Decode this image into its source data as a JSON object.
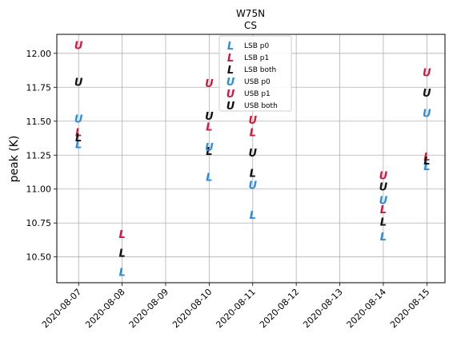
{
  "chart_data": {
    "type": "scatter",
    "title": "W75N",
    "subtitle": "CS",
    "xlabel": "",
    "ylabel": "peak (K)",
    "x_type": "date",
    "xlim": [
      "2020-08-06T12:00",
      "2020-08-15T10:00"
    ],
    "ylim": [
      10.31,
      12.14
    ],
    "x_ticks": [
      "2020-08-07",
      "2020-08-08",
      "2020-08-09",
      "2020-08-10",
      "2020-08-11",
      "2020-08-12",
      "2020-08-13",
      "2020-08-14",
      "2020-08-15"
    ],
    "y_ticks": [
      "10.50",
      "10.75",
      "11.00",
      "11.25",
      "11.50",
      "11.75",
      "12.00"
    ],
    "grid": true,
    "legend_position": "top-center",
    "series": [
      {
        "name": "LSB p0",
        "marker": "L",
        "color": "#2a8ee0",
        "points": [
          [
            "2020-08-07",
            11.33
          ],
          [
            "2020-08-08",
            10.39
          ],
          [
            "2020-08-10",
            11.09
          ],
          [
            "2020-08-11",
            10.81
          ],
          [
            "2020-08-14",
            10.65
          ],
          [
            "2020-08-15",
            11.17
          ]
        ]
      },
      {
        "name": "LSB p1",
        "marker": "L",
        "color": "#d6173e",
        "points": [
          [
            "2020-08-07",
            11.42
          ],
          [
            "2020-08-08",
            10.67
          ],
          [
            "2020-08-10",
            11.46
          ],
          [
            "2020-08-11",
            11.42
          ],
          [
            "2020-08-14",
            10.85
          ],
          [
            "2020-08-15",
            11.24
          ]
        ]
      },
      {
        "name": "LSB both",
        "marker": "L",
        "color": "#111111",
        "points": [
          [
            "2020-08-07",
            11.38
          ],
          [
            "2020-08-08",
            10.53
          ],
          [
            "2020-08-10",
            11.28
          ],
          [
            "2020-08-11",
            11.12
          ],
          [
            "2020-08-14",
            10.76
          ],
          [
            "2020-08-15",
            11.21
          ]
        ]
      },
      {
        "name": "USB p0",
        "marker": "U",
        "color": "#2a8ee0",
        "points": [
          [
            "2020-08-07",
            11.52
          ],
          [
            "2020-08-10",
            11.31
          ],
          [
            "2020-08-11",
            11.03
          ],
          [
            "2020-08-14",
            10.92
          ],
          [
            "2020-08-15",
            11.56
          ]
        ]
      },
      {
        "name": "USB p1",
        "marker": "U",
        "color": "#d6173e",
        "points": [
          [
            "2020-08-07",
            12.06
          ],
          [
            "2020-08-10",
            11.78
          ],
          [
            "2020-08-11",
            11.51
          ],
          [
            "2020-08-14",
            11.1
          ],
          [
            "2020-08-15",
            11.86
          ]
        ]
      },
      {
        "name": "USB both",
        "marker": "U",
        "color": "#111111",
        "points": [
          [
            "2020-08-07",
            11.79
          ],
          [
            "2020-08-10",
            11.54
          ],
          [
            "2020-08-11",
            11.27
          ],
          [
            "2020-08-14",
            11.02
          ],
          [
            "2020-08-15",
            11.71
          ]
        ]
      }
    ]
  }
}
